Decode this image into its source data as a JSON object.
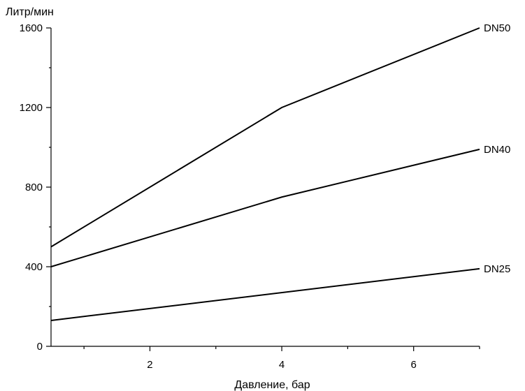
{
  "chart_data": {
    "type": "line",
    "title": "",
    "xlabel": "Давление, бар",
    "ylabel": "Литр/мин",
    "xlim": [
      0.5,
      7
    ],
    "ylim": [
      0,
      1600
    ],
    "x_ticks": [
      2,
      4,
      6
    ],
    "x_minor_ticks": [
      1,
      3,
      5,
      7
    ],
    "y_ticks": [
      0,
      400,
      800,
      1200,
      1600
    ],
    "y_minor_ticks": [
      200,
      600,
      1000,
      1400
    ],
    "grid": false,
    "legend": "inline-right",
    "series": [
      {
        "name": "DN50",
        "x": [
          0.5,
          4,
          7
        ],
        "y": [
          500,
          1200,
          1600
        ]
      },
      {
        "name": "DN40",
        "x": [
          0.5,
          4,
          7
        ],
        "y": [
          400,
          750,
          990
        ]
      },
      {
        "name": "DN25",
        "x": [
          0.5,
          7
        ],
        "y": [
          130,
          390
        ]
      }
    ]
  }
}
